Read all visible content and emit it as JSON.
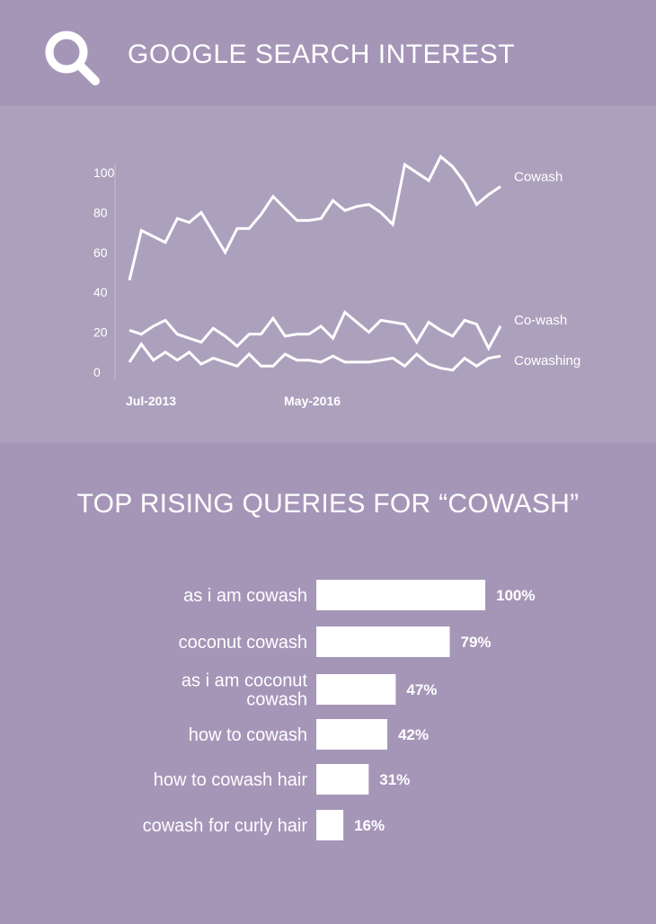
{
  "header": {
    "title": "GOOGLE SEARCH INTEREST",
    "icon": "search-icon"
  },
  "trend": {
    "chart_data": {
      "type": "line",
      "y_ticks": [
        0,
        20,
        40,
        60,
        80,
        100
      ],
      "ylim": [
        0,
        100
      ],
      "x_tick_labels": [
        "Jul-2013",
        "May-2016"
      ],
      "series": [
        {
          "name": "Cowash",
          "values": [
            46,
            71,
            68,
            65,
            77,
            75,
            80,
            70,
            60,
            72,
            72,
            79,
            88,
            82,
            76,
            76,
            77,
            86,
            81,
            83,
            84,
            80,
            74,
            104,
            100,
            96,
            108,
            103,
            95,
            84,
            89,
            93
          ]
        },
        {
          "name": "Co-wash",
          "values": [
            21,
            19,
            23,
            26,
            19,
            17,
            15,
            22,
            18,
            13,
            19,
            19,
            27,
            18,
            19,
            19,
            23,
            17,
            30,
            25,
            20,
            26,
            25,
            24,
            15,
            25,
            21,
            18,
            26,
            24,
            12,
            23
          ]
        },
        {
          "name": "Cowashing",
          "values": [
            5,
            14,
            6,
            10,
            6,
            10,
            4,
            7,
            5,
            3,
            9,
            3,
            3,
            9,
            6,
            6,
            5,
            8,
            5,
            5,
            5,
            6,
            7,
            3,
            9,
            4,
            2,
            1,
            7,
            3,
            7,
            8
          ]
        }
      ]
    }
  },
  "queries": {
    "title": "TOP RISING QUERIES FOR “COWASH”",
    "chart_data": {
      "type": "bar",
      "orientation": "horizontal",
      "categories": [
        [
          "as i am cowash"
        ],
        [
          "coconut cowash"
        ],
        [
          "as i am coconut",
          "cowash"
        ],
        [
          "how to cowash"
        ],
        [
          "how to cowash hair"
        ],
        [
          "cowash for curly hair"
        ]
      ],
      "values": [
        100,
        79,
        47,
        42,
        31,
        16
      ],
      "value_labels": [
        "100%",
        "79%",
        "47%",
        "42%",
        "31%",
        "16%"
      ]
    }
  },
  "colors": {
    "background": "#a596b8",
    "panel": "#aca1bd",
    "foreground": "#ffffff"
  }
}
